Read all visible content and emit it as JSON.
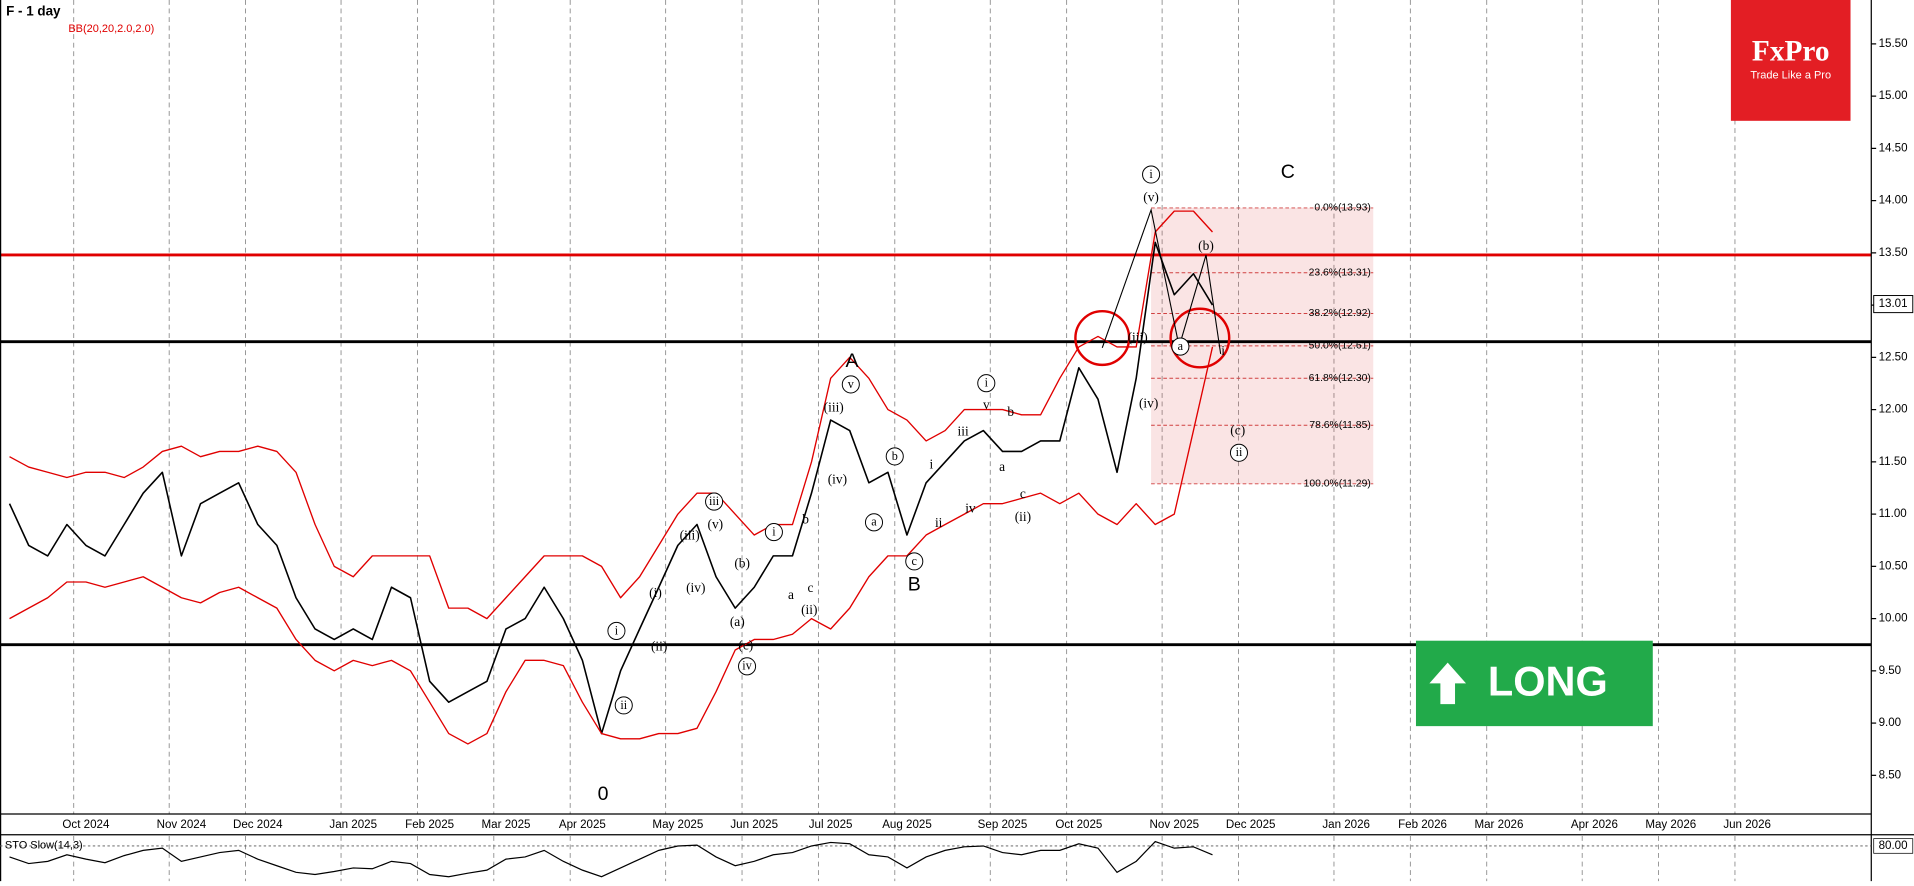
{
  "chart_data": {
    "type": "line",
    "title": "F - 1 day",
    "subtitle": "BB(20,20,2.0,2.0)",
    "categories": [
      null,
      null,
      null,
      null,
      "Oct 2024",
      null,
      null,
      null,
      null,
      "Nov 2024",
      null,
      null,
      null,
      "Dec 2024",
      null,
      null,
      null,
      null,
      "Jan 2025",
      null,
      null,
      null,
      "Feb 2025",
      null,
      null,
      null,
      "Mar 2025",
      null,
      null,
      null,
      "Apr 2025",
      null,
      null,
      null,
      null,
      "May 2025",
      null,
      null,
      null,
      "Jun 2025",
      null,
      null,
      null,
      "Jul 2025",
      null,
      null,
      null,
      "Aug 2025",
      null,
      null,
      null,
      null,
      "Sep 2025",
      null,
      null,
      null,
      "Oct 2025",
      null,
      null,
      null,
      null,
      "Nov 2025",
      null,
      null,
      null,
      "Dec 2025",
      null,
      null,
      null,
      null,
      "Jan 2026",
      null,
      null,
      null,
      "Feb 2026",
      null,
      null,
      null,
      "Mar 2026",
      null,
      null,
      null,
      null,
      "Apr 2026",
      null,
      null,
      null,
      "May 2026",
      null,
      null,
      null,
      "Jun 2026",
      null,
      null,
      null,
      null,
      null,
      null
    ],
    "series": [
      {
        "color": "#000000",
        "values": [
          11.1,
          10.7,
          10.6,
          10.9,
          10.7,
          10.6,
          10.9,
          11.2,
          11.4,
          10.6,
          11.1,
          11.2,
          11.3,
          10.9,
          10.7,
          10.2,
          9.9,
          9.8,
          9.9,
          9.8,
          10.3,
          10.2,
          9.4,
          9.2,
          9.3,
          9.4,
          9.9,
          10.0,
          10.3,
          10.0,
          9.6,
          8.9,
          9.5,
          9.9,
          10.3,
          10.7,
          10.9,
          10.4,
          10.1,
          10.3,
          10.6,
          10.6,
          11.2,
          11.9,
          11.8,
          11.3,
          11.4,
          10.8,
          11.3,
          11.5,
          11.7,
          11.8,
          11.6,
          11.6,
          11.7,
          11.7,
          12.4,
          12.1,
          11.4,
          12.3,
          13.6,
          13.1,
          13.3,
          13.0,
          null,
          null,
          null,
          null,
          null,
          null,
          null,
          null,
          null,
          null,
          null,
          null,
          null,
          null,
          null,
          null,
          null,
          null,
          null,
          null,
          null,
          null,
          null,
          null,
          null,
          null,
          null,
          null,
          null,
          null,
          null,
          null,
          null,
          null
        ]
      },
      {
        "color": "#e00000",
        "values": [
          11.55,
          11.45,
          11.4,
          11.35,
          11.4,
          11.4,
          11.35,
          11.45,
          11.6,
          11.65,
          11.55,
          11.6,
          11.6,
          11.65,
          11.6,
          11.4,
          10.9,
          10.5,
          10.4,
          10.6,
          10.6,
          10.6,
          10.6,
          10.1,
          10.1,
          10.0,
          10.2,
          10.4,
          10.6,
          10.6,
          10.6,
          10.5,
          10.2,
          10.4,
          10.7,
          11.0,
          11.2,
          11.2,
          11.0,
          10.8,
          10.9,
          10.9,
          11.5,
          12.3,
          12.5,
          12.3,
          12.0,
          11.9,
          11.7,
          11.8,
          12.0,
          12.0,
          12.0,
          11.95,
          11.95,
          12.3,
          12.6,
          12.7,
          12.6,
          12.6,
          13.7,
          13.9,
          13.9,
          13.7,
          null,
          null,
          null,
          null,
          null,
          null,
          null,
          null,
          null,
          null,
          null,
          null,
          null,
          null,
          null,
          null,
          null,
          null,
          null,
          null,
          null,
          null,
          null,
          null,
          null,
          null,
          null,
          null,
          null,
          null,
          null,
          null,
          null,
          null
        ]
      },
      {
        "color": "#e00000",
        "values": [
          10.0,
          10.1,
          10.2,
          10.35,
          10.35,
          10.3,
          10.35,
          10.4,
          10.3,
          10.2,
          10.15,
          10.25,
          10.3,
          10.2,
          10.1,
          9.8,
          9.6,
          9.5,
          9.6,
          9.55,
          9.6,
          9.5,
          9.2,
          8.9,
          8.8,
          8.9,
          9.3,
          9.6,
          9.6,
          9.55,
          9.2,
          8.9,
          8.85,
          8.85,
          8.9,
          8.9,
          8.95,
          9.3,
          9.7,
          9.8,
          9.8,
          9.85,
          10.0,
          9.9,
          10.1,
          10.4,
          10.6,
          10.6,
          10.8,
          10.9,
          11.0,
          11.1,
          11.1,
          11.15,
          11.2,
          11.1,
          11.2,
          11.0,
          10.9,
          11.1,
          10.9,
          11.0,
          11.8,
          12.6,
          null,
          null,
          null,
          null,
          null,
          null,
          null,
          null,
          null,
          null,
          null,
          null,
          null,
          null,
          null,
          null,
          null,
          null,
          null,
          null,
          null,
          null,
          null,
          null,
          null,
          null,
          null,
          null,
          null,
          null,
          null,
          null,
          null,
          null
        ]
      }
    ],
    "ylim": [
      8.13,
      15.92
    ],
    "yticks": [
      {
        "value": 8.5,
        "label": "8.50"
      },
      {
        "value": 9.0,
        "label": "9.00"
      },
      {
        "value": 9.5,
        "label": "9.50"
      },
      {
        "value": 10.0,
        "label": "10.00"
      },
      {
        "value": 10.5,
        "label": "10.50"
      },
      {
        "value": 11.0,
        "label": "11.00"
      },
      {
        "value": 11.5,
        "label": "11.50"
      },
      {
        "value": 12.0,
        "label": "12.00"
      },
      {
        "value": 12.5,
        "label": "12.50"
      },
      {
        "value": 13.0,
        "label": "13.00"
      },
      {
        "value": 13.5,
        "label": "13.50"
      },
      {
        "value": 14.0,
        "label": "14.00"
      },
      {
        "value": 14.5,
        "label": "14.50"
      },
      {
        "value": 15.0,
        "label": "15.00"
      },
      {
        "value": 15.5,
        "label": "15.50"
      }
    ],
    "grid": true,
    "last_price": {
      "value": 13.01,
      "label": "13.01"
    },
    "levels": [
      {
        "value": 13.48,
        "color": "#e00000"
      },
      {
        "value": 12.65,
        "color": "#000000"
      },
      {
        "value": 9.75,
        "color": "#000000"
      }
    ],
    "fibonacci": [
      {
        "value": 13.93,
        "label": "0.0%(13.93)"
      },
      {
        "value": 13.31,
        "label": "23.6%(13.31)"
      },
      {
        "value": 12.92,
        "label": "38.2%(12.92)"
      },
      {
        "value": 12.61,
        "label": "50.0%(12.61)"
      },
      {
        "value": 12.3,
        "label": "61.8%(12.30)"
      },
      {
        "value": 11.85,
        "label": "78.6%(11.85)"
      },
      {
        "value": 11.29,
        "label": "100.0%(11.29)"
      }
    ],
    "annotations": [
      {
        "text": "i",
        "circled": true
      },
      {
        "text": "(v)",
        "circled": false
      },
      {
        "text": "C",
        "circled": false
      },
      {
        "text": "(b)",
        "circled": false
      },
      {
        "text": "(iii)",
        "circled": false
      },
      {
        "text": "a",
        "circled": true
      },
      {
        "text": "i",
        "circled": false
      },
      {
        "text": "(iv)",
        "circled": false
      },
      {
        "text": "(c)",
        "circled": false
      },
      {
        "text": "ii",
        "circled": true
      },
      {
        "text": "A",
        "circled": false
      },
      {
        "text": "v",
        "circled": true
      },
      {
        "text": "(iii)",
        "circled": false
      },
      {
        "text": "i",
        "circled": true
      },
      {
        "text": "v",
        "circled": false
      },
      {
        "text": "iii",
        "circled": false
      },
      {
        "text": "b",
        "circled": false
      },
      {
        "text": "a",
        "circled": false
      },
      {
        "text": "i",
        "circled": false
      },
      {
        "text": "c",
        "circled": false
      },
      {
        "text": "iv",
        "circled": false
      },
      {
        "text": "ii",
        "circled": false
      },
      {
        "text": "(ii)",
        "circled": false
      },
      {
        "text": "b",
        "circled": true
      },
      {
        "text": "(iv)",
        "circled": false
      },
      {
        "text": "a",
        "circled": true
      },
      {
        "text": "c",
        "circled": true
      },
      {
        "text": "B",
        "circled": false
      },
      {
        "text": "iii",
        "circled": true
      },
      {
        "text": "(iii)",
        "circled": false
      },
      {
        "text": "(v)",
        "circled": false
      },
      {
        "text": "(iv)",
        "circled": false
      },
      {
        "text": "i",
        "circled": true
      },
      {
        "text": "b",
        "circled": false
      },
      {
        "text": "(b)",
        "circled": false
      },
      {
        "text": "a",
        "circled": false
      },
      {
        "text": "c",
        "circled": false
      },
      {
        "text": "(ii)",
        "circled": false
      },
      {
        "text": "(i)",
        "circled": false
      },
      {
        "text": "(a)",
        "circled": false
      },
      {
        "text": "(c)",
        "circled": false
      },
      {
        "text": "iv",
        "circled": true
      },
      {
        "text": "(ii)",
        "circled": false
      },
      {
        "text": "i",
        "circled": true
      },
      {
        "text": "ii",
        "circled": true
      },
      {
        "text": "0",
        "circled": false
      }
    ],
    "oscillator": {
      "title": "STO Slow(14,3)",
      "color": "#000000",
      "values": [
        55,
        40,
        45,
        60,
        50,
        42,
        58,
        70,
        75,
        45,
        55,
        65,
        70,
        50,
        35,
        20,
        15,
        22,
        30,
        28,
        45,
        40,
        15,
        10,
        18,
        25,
        50,
        55,
        70,
        45,
        25,
        10,
        30,
        50,
        70,
        80,
        82,
        55,
        35,
        45,
        60,
        65,
        80,
        88,
        85,
        60,
        55,
        30,
        55,
        70,
        78,
        80,
        65,
        60,
        70,
        70,
        85,
        75,
        20,
        45,
        90,
        75,
        78,
        60
      ],
      "ylim": [
        0,
        100
      ],
      "yticks": [
        {
          "value": 80,
          "label": "80.00"
        }
      ]
    }
  },
  "brand": {
    "name": "FxPro",
    "slogan": "Trade Like a Pro"
  },
  "signal": "LONG"
}
